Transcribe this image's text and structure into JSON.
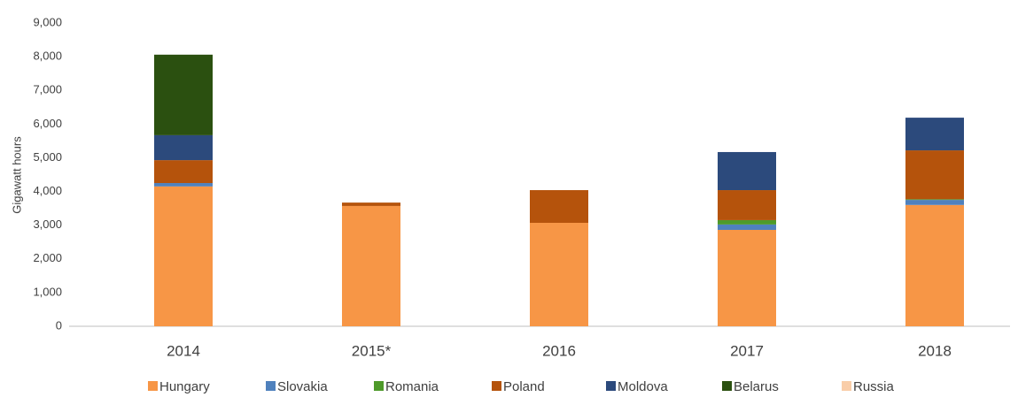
{
  "chart_data": {
    "type": "stacked_bar",
    "y_label": "Gigawatt hours",
    "categories": [
      "2014",
      "2015*",
      "2016",
      "2017",
      "2018"
    ],
    "series": [
      {
        "name": "Hungary",
        "color": "#f79646",
        "values": [
          4150,
          3570,
          3070,
          2860,
          3600
        ]
      },
      {
        "name": "Slovakia",
        "color": "#4f81bd",
        "values": [
          100,
          0,
          0,
          160,
          150
        ]
      },
      {
        "name": "Romania",
        "color": "#4e9a2a",
        "values": [
          0,
          0,
          0,
          130,
          20
        ]
      },
      {
        "name": "Poland",
        "color": "#b5530c",
        "values": [
          680,
          100,
          970,
          890,
          1450
        ]
      },
      {
        "name": "Moldova",
        "color": "#2c4a7c",
        "values": [
          740,
          0,
          0,
          1130,
          970
        ]
      },
      {
        "name": "Belarus",
        "color": "#2b5010",
        "values": [
          2390,
          0,
          0,
          0,
          0
        ]
      },
      {
        "name": "Russia",
        "color": "#f9cda8",
        "values": [
          0,
          0,
          0,
          0,
          0
        ]
      }
    ],
    "ylim": [
      0,
      9000
    ],
    "yticks": [
      0,
      {
        "value": 1000,
        "label": "1,000"
      },
      {
        "value": 2000,
        "label": "2,000"
      },
      {
        "value": 3000,
        "label": "3,000"
      },
      {
        "value": 4000,
        "label": "4,000"
      },
      {
        "value": 5000,
        "label": "5,000"
      },
      {
        "value": 6000,
        "label": "6,000"
      },
      {
        "value": 7000,
        "label": "7,000"
      },
      {
        "value": 8000,
        "label": "8,000"
      },
      {
        "value": 9000,
        "label": "9,000"
      }
    ],
    "grid": false,
    "legend": "bottom"
  }
}
